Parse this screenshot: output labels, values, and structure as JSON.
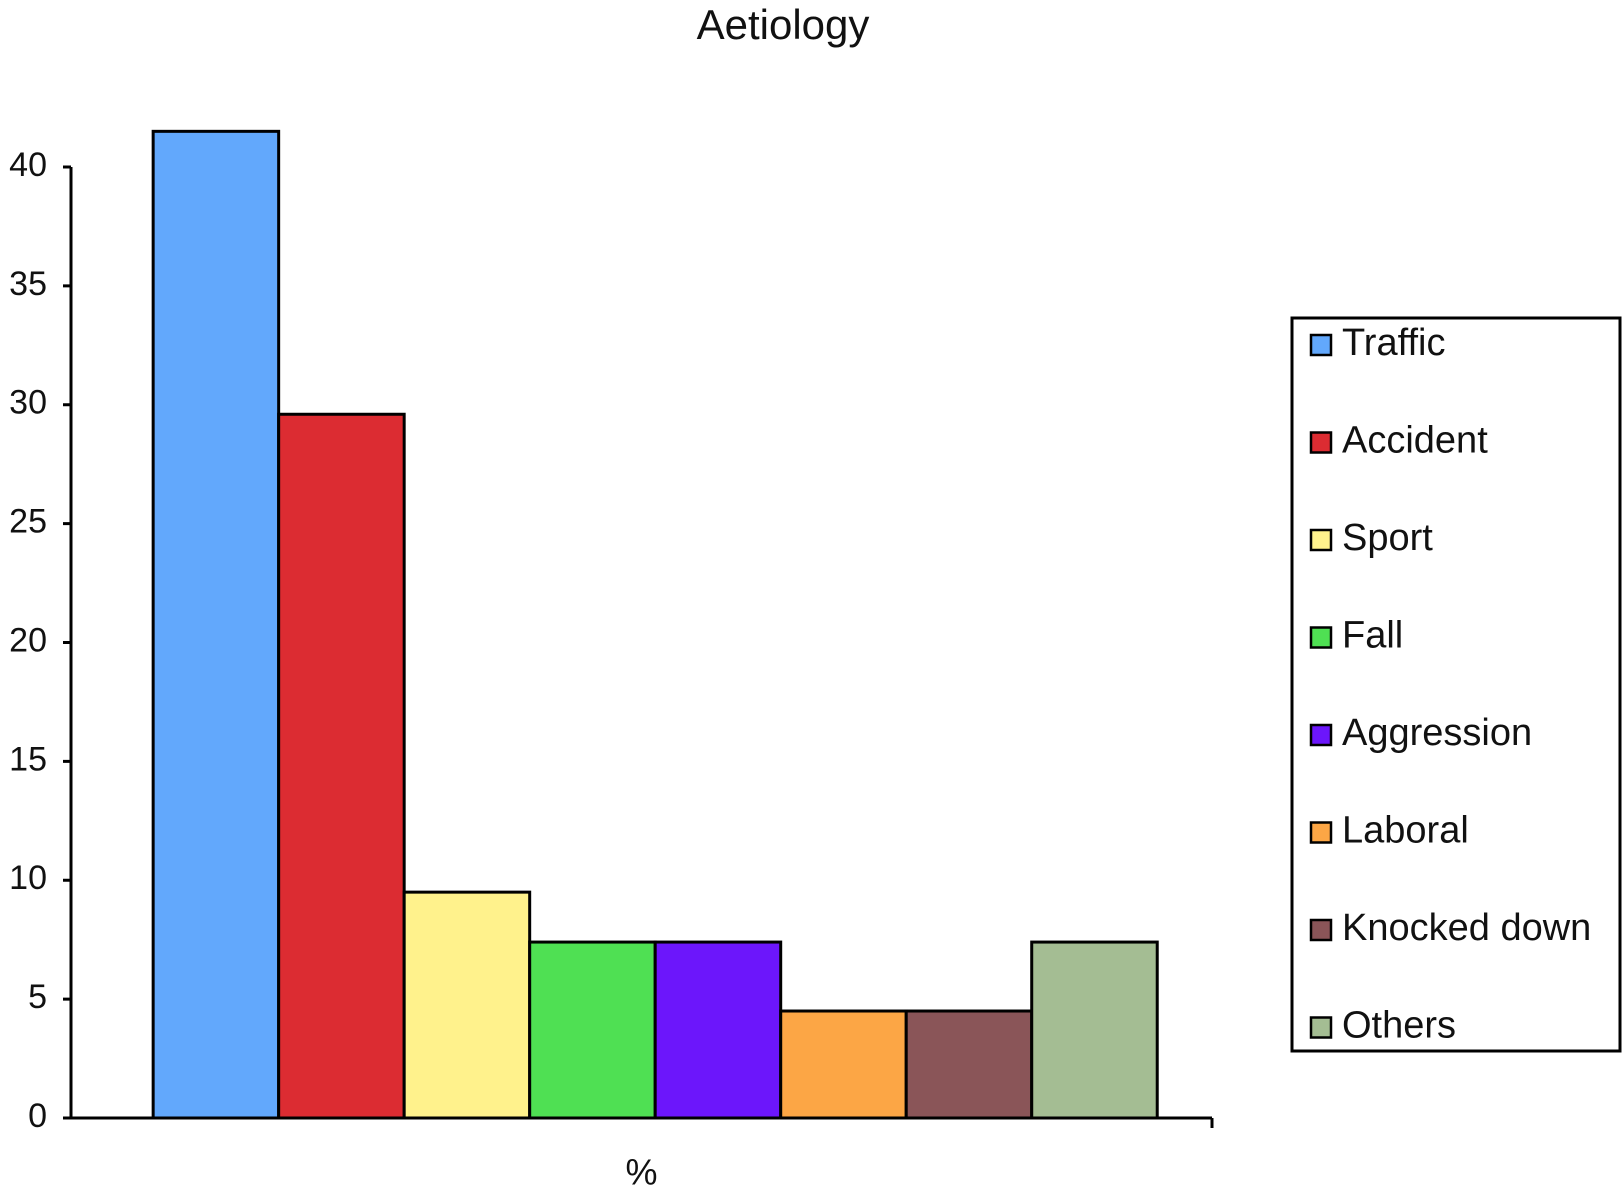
{
  "chart_data": {
    "type": "bar",
    "title": "Aetiology",
    "categories": [
      "%"
    ],
    "series": [
      {
        "name": "Traffic",
        "color": "#62a8fc",
        "values": [
          41.5
        ]
      },
      {
        "name": "Accident",
        "color": "#dc2c32",
        "values": [
          29.6
        ]
      },
      {
        "name": "Sport",
        "color": "#fff28c",
        "values": [
          9.5
        ]
      },
      {
        "name": "Fall",
        "color": "#4fe053",
        "values": [
          7.4
        ]
      },
      {
        "name": "Aggression",
        "color": "#6c16fb",
        "values": [
          7.4
        ]
      },
      {
        "name": "Laboral",
        "color": "#fca645",
        "values": [
          4.5
        ]
      },
      {
        "name": "Knocked down",
        "color": "#8a5558",
        "values": [
          4.5
        ]
      },
      {
        "name": "Others",
        "color": "#a4bd93",
        "values": [
          7.4
        ]
      }
    ],
    "ylim": [
      0,
      40
    ],
    "yticks": [
      0,
      5,
      10,
      15,
      20,
      25,
      30,
      35,
      40
    ],
    "legend": "right"
  }
}
